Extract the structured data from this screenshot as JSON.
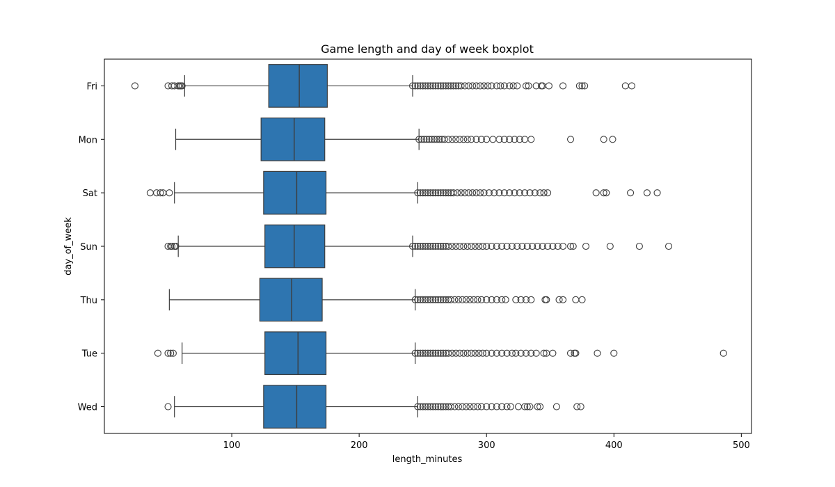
{
  "chart_data": {
    "type": "boxplot",
    "orientation": "horizontal",
    "title": "Game length and day of week boxplot",
    "xlabel": "length_minutes",
    "ylabel": "day_of_week",
    "xlim": [
      0,
      508
    ],
    "xticks": [
      100,
      200,
      300,
      400,
      500
    ],
    "xtick_labels": [
      "100",
      "200",
      "300",
      "400",
      "500"
    ],
    "grid": false,
    "box_color": "#2e75b0",
    "line_color": "#3d3d3d",
    "categories": [
      "Fri",
      "Mon",
      "Sat",
      "Sun",
      "Thu",
      "Tue",
      "Wed"
    ],
    "boxes": [
      {
        "category": "Fri",
        "whisker_low": 63,
        "q1": 129,
        "median": 153,
        "q3": 175,
        "whisker_high": 242,
        "outliers": [
          24,
          50,
          53,
          55,
          58,
          59,
          60,
          61,
          242,
          244,
          246,
          248,
          250,
          252,
          254,
          256,
          258,
          260,
          262,
          264,
          266,
          268,
          270,
          272,
          274,
          276,
          278,
          280,
          283,
          286,
          289,
          292,
          295,
          298,
          301,
          304,
          308,
          311,
          314,
          318,
          321,
          324,
          331,
          333,
          339,
          343,
          344,
          349,
          360,
          373,
          375,
          377,
          409,
          414
        ]
      },
      {
        "category": "Mon",
        "whisker_low": 56,
        "q1": 123,
        "median": 149,
        "q3": 173,
        "whisker_high": 247,
        "outliers": [
          247,
          249,
          251,
          253,
          255,
          257,
          259,
          261,
          263,
          265,
          267,
          270,
          273,
          276,
          279,
          282,
          285,
          288,
          292,
          296,
          300,
          305,
          310,
          314,
          318,
          322,
          326,
          330,
          335,
          366,
          392,
          399
        ]
      },
      {
        "category": "Sat",
        "whisker_low": 55,
        "q1": 125,
        "median": 151,
        "q3": 174,
        "whisker_high": 246,
        "outliers": [
          36,
          41,
          44,
          46,
          51,
          246,
          248,
          250,
          252,
          254,
          256,
          258,
          260,
          262,
          264,
          266,
          268,
          270,
          272,
          274,
          277,
          280,
          283,
          286,
          289,
          292,
          295,
          298,
          302,
          306,
          310,
          314,
          318,
          322,
          326,
          330,
          334,
          338,
          342,
          345,
          348,
          386,
          392,
          394,
          413,
          426,
          434
        ]
      },
      {
        "category": "Sun",
        "whisker_low": 58,
        "q1": 126,
        "median": 149,
        "q3": 173,
        "whisker_high": 242,
        "outliers": [
          50,
          52,
          53,
          55,
          56,
          242,
          244,
          246,
          248,
          250,
          252,
          254,
          256,
          258,
          260,
          262,
          264,
          266,
          268,
          270,
          273,
          276,
          279,
          282,
          285,
          288,
          291,
          294,
          297,
          300,
          304,
          308,
          312,
          316,
          320,
          324,
          328,
          332,
          336,
          340,
          344,
          348,
          352,
          356,
          360,
          366,
          368,
          378,
          397,
          420,
          443
        ]
      },
      {
        "category": "Thu",
        "whisker_low": 51,
        "q1": 122,
        "median": 147,
        "q3": 171,
        "whisker_high": 244,
        "outliers": [
          244,
          246,
          248,
          250,
          252,
          254,
          256,
          258,
          260,
          262,
          264,
          266,
          268,
          270,
          272,
          275,
          278,
          281,
          284,
          287,
          290,
          293,
          296,
          300,
          304,
          308,
          312,
          315,
          323,
          327,
          331,
          335,
          346,
          347,
          357,
          360,
          370,
          375
        ]
      },
      {
        "category": "Tue",
        "whisker_low": 61,
        "q1": 126,
        "median": 152,
        "q3": 174,
        "whisker_high": 244,
        "outliers": [
          42,
          50,
          52,
          54,
          244,
          246,
          248,
          250,
          252,
          254,
          256,
          258,
          260,
          262,
          264,
          266,
          268,
          270,
          273,
          276,
          279,
          282,
          285,
          288,
          291,
          294,
          297,
          300,
          304,
          308,
          312,
          316,
          320,
          323,
          327,
          331,
          335,
          339,
          345,
          347,
          352,
          366,
          369,
          370,
          387,
          400,
          486
        ]
      },
      {
        "category": "Wed",
        "whisker_low": 55,
        "q1": 125,
        "median": 151,
        "q3": 174,
        "whisker_high": 246,
        "outliers": [
          50,
          246,
          248,
          250,
          252,
          254,
          256,
          258,
          260,
          262,
          264,
          266,
          268,
          270,
          272,
          275,
          278,
          281,
          284,
          287,
          290,
          293,
          296,
          300,
          304,
          308,
          312,
          316,
          319,
          325,
          330,
          332,
          334,
          340,
          342,
          355,
          371,
          374
        ]
      }
    ]
  }
}
